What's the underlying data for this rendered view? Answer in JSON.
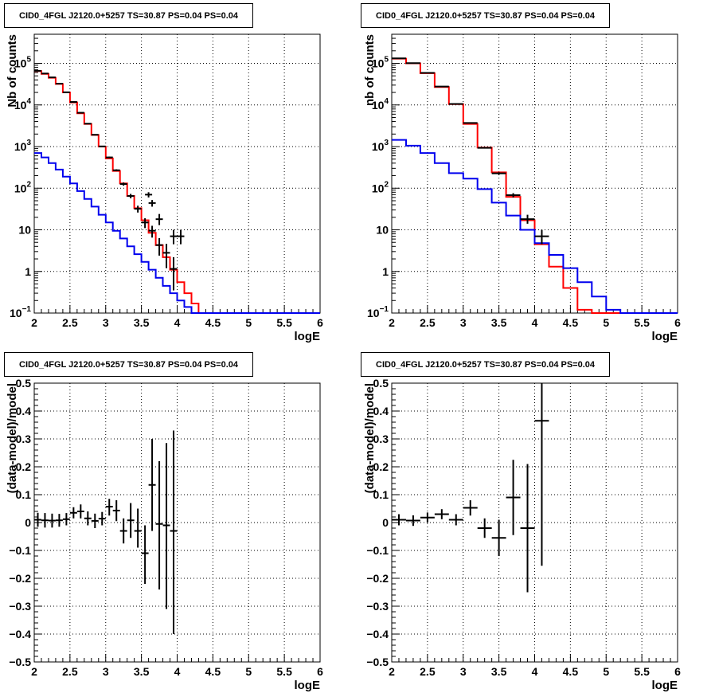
{
  "chart_data": [
    {
      "type": "line",
      "title": "CID0_4FGL J2120.0+5257 TS=30.87 PS=0.04 PS=0.04",
      "xlabel": "logE",
      "ylabel": "Nb of counts",
      "xlim": [
        2,
        6
      ],
      "ylim": [
        0.1,
        500000
      ],
      "log_y": true,
      "grid": true,
      "x_ticks": [
        "2",
        "2.5",
        "3",
        "3.5",
        "4",
        "4.5",
        "5",
        "5.5",
        "6"
      ],
      "y_ticks": [
        {
          "v": 0.1,
          "base": "10",
          "exp": "−1"
        },
        {
          "v": 1,
          "base": "1",
          "exp": ""
        },
        {
          "v": 10,
          "base": "10",
          "exp": ""
        },
        {
          "v": 100,
          "base": "10",
          "exp": "2"
        },
        {
          "v": 1000,
          "base": "10",
          "exp": "3"
        },
        {
          "v": 10000,
          "base": "10",
          "exp": "4"
        },
        {
          "v": 100000,
          "base": "10",
          "exp": "5"
        }
      ],
      "series": [
        {
          "color": "#ff0000",
          "style": "step",
          "edges": [
            2,
            2.1,
            2.2,
            2.3,
            2.4,
            2.5,
            2.6,
            2.7,
            2.8,
            2.9,
            3,
            3.1,
            3.2,
            3.3,
            3.4,
            3.5,
            3.6,
            3.7,
            3.8,
            3.9,
            4,
            4.1,
            4.2,
            4.3,
            4.4,
            4.5,
            4.6,
            4.7,
            4.8,
            4.9,
            5,
            5.1,
            5.2,
            5.3,
            5.4,
            5.5,
            5.6,
            5.7,
            5.8,
            5.9,
            6
          ],
          "values": [
            65000,
            56000,
            45000,
            32000,
            20000,
            11500,
            6300,
            3500,
            1900,
            1000,
            520,
            260,
            130,
            65,
            33,
            17,
            8.5,
            4.3,
            2.2,
            1.1,
            0.55,
            0.3,
            0.17,
            0.1,
            0.1,
            0.1,
            0.1,
            0.1,
            0.1,
            0.1,
            0.1,
            0.1,
            0.1,
            0.1,
            0.1,
            0.1,
            0.1,
            0.1,
            0.1,
            0.1
          ]
        },
        {
          "color": "#0000ee",
          "style": "step",
          "edges": [
            2,
            2.1,
            2.2,
            2.3,
            2.4,
            2.5,
            2.6,
            2.7,
            2.8,
            2.9,
            3,
            3.1,
            3.2,
            3.3,
            3.4,
            3.5,
            3.6,
            3.7,
            3.8,
            3.9,
            4,
            4.1,
            4.2,
            4.3,
            4.4,
            4.5,
            4.6,
            4.7,
            4.8,
            4.9,
            5,
            5.1,
            5.2,
            5.3,
            5.4,
            5.5,
            5.6,
            5.7,
            5.8,
            5.9,
            6
          ],
          "values": [
            700,
            550,
            400,
            280,
            190,
            130,
            85,
            55,
            36,
            23,
            15,
            9.5,
            6.2,
            4,
            2.6,
            1.7,
            1.1,
            0.7,
            0.45,
            0.3,
            0.2,
            0.14,
            0.1,
            0.1,
            0.1,
            0.1,
            0.1,
            0.1,
            0.1,
            0.1,
            0.1,
            0.1,
            0.1,
            0.1,
            0.1,
            0.1,
            0.1,
            0.1,
            0.1,
            0.1
          ]
        }
      ],
      "data_points": [
        {
          "x": 2.05,
          "xerr": 0.05,
          "y": 66000,
          "ylo": 65500,
          "yhi": 66500
        },
        {
          "x": 2.15,
          "xerr": 0.05,
          "y": 57000,
          "ylo": 56500,
          "yhi": 57500
        },
        {
          "x": 2.25,
          "xerr": 0.05,
          "y": 46000,
          "ylo": 45500,
          "yhi": 46500
        },
        {
          "x": 2.35,
          "xerr": 0.05,
          "y": 32500,
          "ylo": 32100,
          "yhi": 32900
        },
        {
          "x": 2.45,
          "xerr": 0.05,
          "y": 20200,
          "ylo": 20000,
          "yhi": 20500
        },
        {
          "x": 2.55,
          "xerr": 0.05,
          "y": 11800,
          "ylo": 11600,
          "yhi": 12000
        },
        {
          "x": 2.65,
          "xerr": 0.05,
          "y": 6500,
          "ylo": 6400,
          "yhi": 6600
        },
        {
          "x": 2.75,
          "xerr": 0.05,
          "y": 3550,
          "ylo": 3450,
          "yhi": 3650
        },
        {
          "x": 2.85,
          "xerr": 0.05,
          "y": 1920,
          "ylo": 1870,
          "yhi": 1970
        },
        {
          "x": 2.95,
          "xerr": 0.05,
          "y": 1010,
          "ylo": 980,
          "yhi": 1040
        },
        {
          "x": 3.05,
          "xerr": 0.05,
          "y": 550,
          "ylo": 525,
          "yhi": 575
        },
        {
          "x": 3.15,
          "xerr": 0.05,
          "y": 270,
          "ylo": 255,
          "yhi": 285
        },
        {
          "x": 3.25,
          "xerr": 0.05,
          "y": 126,
          "ylo": 115,
          "yhi": 137
        },
        {
          "x": 3.35,
          "xerr": 0.05,
          "y": 65,
          "ylo": 57,
          "yhi": 73
        },
        {
          "x": 3.45,
          "xerr": 0.05,
          "y": 32,
          "ylo": 26,
          "yhi": 38
        },
        {
          "x": 3.55,
          "xerr": 0.05,
          "y": 15,
          "ylo": 11,
          "yhi": 19
        },
        {
          "x": 3.65,
          "xerr": 0.05,
          "y": 9.5,
          "ylo": 6.5,
          "yhi": 12.5
        },
        {
          "x": 3.75,
          "xerr": 0.05,
          "y": 4.3,
          "ylo": 2.4,
          "yhi": 6.3
        },
        {
          "x": 3.85,
          "xerr": 0.05,
          "y": 2.8,
          "ylo": 1.2,
          "yhi": 4.6
        },
        {
          "x": 3.95,
          "xerr": 0.05,
          "y": 1.15,
          "ylo": 0.35,
          "yhi": 2.2
        },
        {
          "x": 3.6,
          "xerr": 0.05,
          "y": 70,
          "ylo": 60,
          "yhi": 80
        },
        {
          "x": 3.65,
          "xerr": 0.05,
          "y": 44,
          "ylo": 36,
          "yhi": 52
        },
        {
          "x": 3.75,
          "xerr": 0.05,
          "y": 18,
          "ylo": 13,
          "yhi": 24
        },
        {
          "x": 3.95,
          "xerr": 0.05,
          "y": 7,
          "ylo": 4.5,
          "yhi": 10
        },
        {
          "x": 4.05,
          "xerr": 0.05,
          "y": 7,
          "ylo": 4.5,
          "yhi": 10
        }
      ]
    },
    {
      "type": "line",
      "title": "CID0_4FGL J2120.0+5257 TS=30.87 PS=0.04 PS=0.04",
      "xlabel": "logE",
      "ylabel": "nb of counts",
      "xlim": [
        2,
        6
      ],
      "ylim": [
        0.1,
        500000
      ],
      "log_y": true,
      "grid": true,
      "x_ticks": [
        "2",
        "2.5",
        "3",
        "3.5",
        "4",
        "4.5",
        "5",
        "5.5",
        "6"
      ],
      "y_ticks": [
        {
          "v": 0.1,
          "base": "10",
          "exp": "−1"
        },
        {
          "v": 1,
          "base": "1",
          "exp": ""
        },
        {
          "v": 10,
          "base": "10",
          "exp": ""
        },
        {
          "v": 100,
          "base": "10",
          "exp": "2"
        },
        {
          "v": 1000,
          "base": "10",
          "exp": "3"
        },
        {
          "v": 10000,
          "base": "10",
          "exp": "4"
        },
        {
          "v": 100000,
          "base": "10",
          "exp": "5"
        }
      ],
      "series": [
        {
          "color": "#ff0000",
          "style": "step",
          "edges": [
            2,
            2.2,
            2.4,
            2.6,
            2.8,
            3,
            3.2,
            3.4,
            3.6,
            3.8,
            4,
            4.2,
            4.4,
            4.6,
            4.8,
            5,
            5.2,
            5.4,
            5.6,
            5.8,
            6
          ],
          "values": [
            130000,
            100000,
            58000,
            27000,
            10500,
            3500,
            950,
            240,
            62,
            17,
            4.5,
            1.3,
            0.4,
            0.12,
            0.1,
            0.1,
            0.1,
            0.1,
            0.1,
            0.1
          ]
        },
        {
          "color": "#0000ee",
          "style": "step",
          "edges": [
            2,
            2.2,
            2.4,
            2.6,
            2.8,
            3,
            3.2,
            3.4,
            3.6,
            3.8,
            4,
            4.2,
            4.4,
            4.6,
            4.8,
            5,
            5.2,
            5.4,
            5.6,
            5.8,
            6
          ],
          "values": [
            1450,
            1050,
            700,
            400,
            230,
            170,
            95,
            45,
            22,
            10,
            4.8,
            2.5,
            1.2,
            0.55,
            0.25,
            0.12,
            0.1,
            0.1,
            0.1,
            0.1
          ]
        }
      ],
      "data_points": [
        {
          "x": 2.1,
          "xerr": 0.1,
          "y": 132000,
          "ylo": 131000,
          "yhi": 133000
        },
        {
          "x": 2.3,
          "xerr": 0.1,
          "y": 101000,
          "ylo": 100000,
          "yhi": 102000
        },
        {
          "x": 2.5,
          "xerr": 0.1,
          "y": 59000,
          "ylo": 58500,
          "yhi": 59500
        },
        {
          "x": 2.7,
          "xerr": 0.1,
          "y": 27800,
          "ylo": 27500,
          "yhi": 28100
        },
        {
          "x": 2.9,
          "xerr": 0.1,
          "y": 10600,
          "ylo": 10400,
          "yhi": 10800
        },
        {
          "x": 3.1,
          "xerr": 0.1,
          "y": 3700,
          "ylo": 3600,
          "yhi": 3800
        },
        {
          "x": 3.3,
          "xerr": 0.1,
          "y": 930,
          "ylo": 900,
          "yhi": 960
        },
        {
          "x": 3.5,
          "xerr": 0.1,
          "y": 227,
          "ylo": 212,
          "yhi": 242
        },
        {
          "x": 3.7,
          "xerr": 0.1,
          "y": 68,
          "ylo": 60,
          "yhi": 76
        },
        {
          "x": 3.9,
          "xerr": 0.1,
          "y": 18,
          "ylo": 14,
          "yhi": 23
        },
        {
          "x": 4.1,
          "xerr": 0.1,
          "y": 7,
          "ylo": 4.5,
          "yhi": 10
        }
      ]
    },
    {
      "type": "scatter",
      "title": "CID0_4FGL J2120.0+5257 TS=30.87 PS=0.04 PS=0.04",
      "xlabel": "logE",
      "ylabel": "(data-model)/model",
      "xlim": [
        2,
        6
      ],
      "ylim": [
        -0.5,
        0.5
      ],
      "log_y": false,
      "grid": true,
      "x_ticks": [
        "2",
        "2.5",
        "3",
        "3.5",
        "4",
        "4.5",
        "5",
        "5.5",
        "6"
      ],
      "y_ticks": [
        {
          "v": -0.5,
          "base": "−0.5",
          "exp": ""
        },
        {
          "v": -0.4,
          "base": "−0.4",
          "exp": ""
        },
        {
          "v": -0.3,
          "base": "−0.3",
          "exp": ""
        },
        {
          "v": -0.2,
          "base": "−0.2",
          "exp": ""
        },
        {
          "v": -0.1,
          "base": "−0.1",
          "exp": ""
        },
        {
          "v": 0,
          "base": "0",
          "exp": ""
        },
        {
          "v": 0.1,
          "base": "0.1",
          "exp": ""
        },
        {
          "v": 0.2,
          "base": "0.2",
          "exp": ""
        },
        {
          "v": 0.3,
          "base": "0.3",
          "exp": ""
        },
        {
          "v": 0.4,
          "base": "0.4",
          "exp": ""
        },
        {
          "v": 0.5,
          "base": "0.5",
          "exp": ""
        }
      ],
      "series": [],
      "data_points": [
        {
          "x": 2.05,
          "xerr": 0.05,
          "y": 0.01,
          "ylo": -0.015,
          "yhi": 0.035
        },
        {
          "x": 2.15,
          "xerr": 0.05,
          "y": 0.008,
          "ylo": -0.018,
          "yhi": 0.034
        },
        {
          "x": 2.25,
          "xerr": 0.05,
          "y": 0.007,
          "ylo": -0.018,
          "yhi": 0.032
        },
        {
          "x": 2.35,
          "xerr": 0.05,
          "y": 0.008,
          "ylo": -0.015,
          "yhi": 0.031
        },
        {
          "x": 2.45,
          "xerr": 0.05,
          "y": 0.012,
          "ylo": -0.01,
          "yhi": 0.034
        },
        {
          "x": 2.55,
          "xerr": 0.05,
          "y": 0.035,
          "ylo": 0.015,
          "yhi": 0.055
        },
        {
          "x": 2.65,
          "xerr": 0.05,
          "y": 0.04,
          "ylo": 0.015,
          "yhi": 0.065
        },
        {
          "x": 2.75,
          "xerr": 0.05,
          "y": 0.015,
          "ylo": -0.01,
          "yhi": 0.04
        },
        {
          "x": 2.85,
          "xerr": 0.05,
          "y": 0.006,
          "ylo": -0.02,
          "yhi": 0.032
        },
        {
          "x": 2.95,
          "xerr": 0.05,
          "y": 0.014,
          "ylo": -0.01,
          "yhi": 0.038
        },
        {
          "x": 3.05,
          "xerr": 0.05,
          "y": 0.057,
          "ylo": 0.025,
          "yhi": 0.085
        },
        {
          "x": 3.15,
          "xerr": 0.05,
          "y": 0.043,
          "ylo": 0.005,
          "yhi": 0.08
        },
        {
          "x": 3.25,
          "xerr": 0.05,
          "y": -0.03,
          "ylo": -0.075,
          "yhi": 0.015
        },
        {
          "x": 3.35,
          "xerr": 0.05,
          "y": 0.008,
          "ylo": -0.055,
          "yhi": 0.07
        },
        {
          "x": 3.45,
          "xerr": 0.05,
          "y": -0.03,
          "ylo": -0.09,
          "yhi": 0.05
        },
        {
          "x": 3.55,
          "xerr": 0.05,
          "y": -0.11,
          "ylo": -0.22,
          "yhi": -0.01
        },
        {
          "x": 3.65,
          "xerr": 0.05,
          "y": 0.135,
          "ylo": -0.03,
          "yhi": 0.3
        },
        {
          "x": 3.75,
          "xerr": 0.05,
          "y": -0.005,
          "ylo": -0.24,
          "yhi": 0.22
        },
        {
          "x": 3.85,
          "xerr": 0.05,
          "y": -0.01,
          "ylo": -0.31,
          "yhi": 0.285
        },
        {
          "x": 3.95,
          "xerr": 0.05,
          "y": -0.03,
          "ylo": -0.4,
          "yhi": 0.33
        }
      ]
    },
    {
      "type": "scatter",
      "title": "CID0_4FGL J2120.0+5257 TS=30.87 PS=0.04 PS=0.04",
      "xlabel": "logE",
      "ylabel": "(data-model)/model",
      "xlim": [
        2,
        6
      ],
      "ylim": [
        -0.5,
        0.5
      ],
      "log_y": false,
      "grid": true,
      "x_ticks": [
        "2",
        "2.5",
        "3",
        "3.5",
        "4",
        "4.5",
        "5",
        "5.5",
        "6"
      ],
      "y_ticks": [
        {
          "v": -0.5,
          "base": "−0.5",
          "exp": ""
        },
        {
          "v": -0.4,
          "base": "−0.4",
          "exp": ""
        },
        {
          "v": -0.3,
          "base": "−0.3",
          "exp": ""
        },
        {
          "v": -0.2,
          "base": "−0.2",
          "exp": ""
        },
        {
          "v": -0.1,
          "base": "−0.1",
          "exp": ""
        },
        {
          "v": 0,
          "base": "0",
          "exp": ""
        },
        {
          "v": 0.1,
          "base": "0.1",
          "exp": ""
        },
        {
          "v": 0.2,
          "base": "0.2",
          "exp": ""
        },
        {
          "v": 0.3,
          "base": "0.3",
          "exp": ""
        },
        {
          "v": 0.4,
          "base": "0.4",
          "exp": ""
        },
        {
          "v": 0.5,
          "base": "0.5",
          "exp": ""
        }
      ],
      "series": [],
      "data_points": [
        {
          "x": 2.1,
          "xerr": 0.1,
          "y": 0.01,
          "ylo": -0.01,
          "yhi": 0.03
        },
        {
          "x": 2.3,
          "xerr": 0.1,
          "y": 0.007,
          "ylo": -0.012,
          "yhi": 0.026
        },
        {
          "x": 2.5,
          "xerr": 0.1,
          "y": 0.018,
          "ylo": 0.0,
          "yhi": 0.036
        },
        {
          "x": 2.7,
          "xerr": 0.1,
          "y": 0.03,
          "ylo": 0.012,
          "yhi": 0.048
        },
        {
          "x": 2.9,
          "xerr": 0.1,
          "y": 0.01,
          "ylo": -0.01,
          "yhi": 0.03
        },
        {
          "x": 3.1,
          "xerr": 0.1,
          "y": 0.053,
          "ylo": 0.025,
          "yhi": 0.08
        },
        {
          "x": 3.3,
          "xerr": 0.1,
          "y": -0.02,
          "ylo": -0.055,
          "yhi": 0.015
        },
        {
          "x": 3.5,
          "xerr": 0.1,
          "y": -0.055,
          "ylo": -0.12,
          "yhi": 0.01
        },
        {
          "x": 3.7,
          "xerr": 0.1,
          "y": 0.09,
          "ylo": -0.045,
          "yhi": 0.225
        },
        {
          "x": 3.9,
          "xerr": 0.1,
          "y": -0.02,
          "ylo": -0.25,
          "yhi": 0.21
        },
        {
          "x": 4.1,
          "xerr": 0.1,
          "y": 0.365,
          "ylo": -0.155,
          "yhi": 0.5
        }
      ]
    }
  ]
}
